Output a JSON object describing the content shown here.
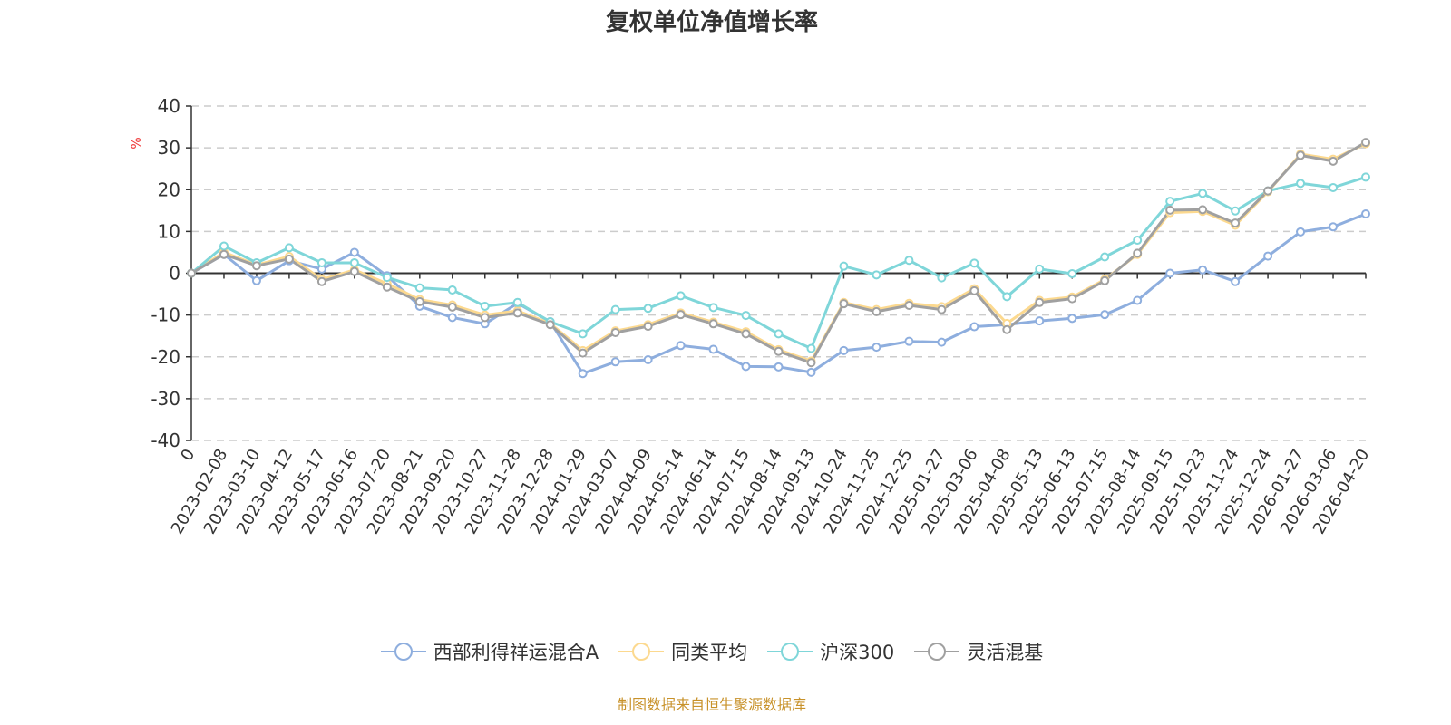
{
  "footer": "制图数据来自恒生聚源数据库",
  "chart_data": {
    "type": "line",
    "title": "复权单位净值增长率",
    "xlabel": "",
    "ylabel": "%",
    "ylim": [
      -40,
      40
    ],
    "yticks": [
      "40",
      "30",
      "20",
      "10",
      "0",
      "-10",
      "-20",
      "-30",
      "-40"
    ],
    "grid": true,
    "legend_position": "bottom",
    "categories": [
      "0",
      "2023-02-08",
      "2023-03-10",
      "2023-04-12",
      "2023-05-17",
      "2023-06-16",
      "2023-07-20",
      "2023-08-21",
      "2023-09-20",
      "2023-10-27",
      "2023-11-28",
      "2023-12-28",
      "2024-01-29",
      "2024-03-07",
      "2024-04-09",
      "2024-05-14",
      "2024-06-14",
      "2024-07-15",
      "2024-08-14",
      "2024-09-13",
      "2024-10-24",
      "2024-11-25",
      "2024-12-25",
      "2025-01-27",
      "2025-03-06",
      "2025-04-08",
      "2025-05-13",
      "2025-06-13",
      "2025-07-15",
      "2025-08-14",
      "2025-09-15",
      "2025-10-23",
      "2025-11-24",
      "2025-12-24",
      "2026-01-27",
      "2026-03-06",
      "2026-04-20"
    ],
    "series": [
      {
        "name": "西部利得祥运混合A",
        "color": "#8eaede",
        "values": [
          0,
          4.5,
          -1.8,
          3,
          1,
          5,
          -0.6,
          -7.9,
          -10.6,
          -12.1,
          -7.2,
          -11.6,
          -24,
          -21.2,
          -20.7,
          -17.3,
          -18.2,
          -22.3,
          -22.4,
          -23.7,
          -18.5,
          -17.7,
          -16.3,
          -16.5,
          -12.8,
          -12.3,
          -11.4,
          -10.8,
          -9.9,
          -6.5,
          0,
          0.8,
          -2,
          4.1,
          9.9,
          11.1,
          14.2
        ]
      },
      {
        "name": "同类平均",
        "color": "#fcd98f",
        "values": [
          0,
          5,
          2,
          4,
          -1.5,
          0.8,
          -2.5,
          -6.3,
          -7.6,
          -10,
          -9,
          -12,
          -18.5,
          -13.8,
          -12.3,
          -9.5,
          -11.7,
          -14,
          -18.3,
          -21,
          -7,
          -8.7,
          -7.2,
          -8,
          -3.7,
          -12,
          -6.5,
          -5.7,
          -1.5,
          4.5,
          14.5,
          14.8,
          11.5,
          19.5,
          28.5,
          27.3,
          31
        ]
      },
      {
        "name": "沪深300",
        "color": "#7fd6d9",
        "values": [
          0,
          6.5,
          2.5,
          6.1,
          2.5,
          2.5,
          -1,
          -3.5,
          -4,
          -7.9,
          -7,
          -11.6,
          -14.5,
          -8.7,
          -8.4,
          -5.4,
          -8.2,
          -10.1,
          -14.5,
          -18,
          1.7,
          -0.4,
          3.1,
          -1.1,
          2.4,
          -5.6,
          1,
          -0.1,
          3.9,
          7.9,
          17.2,
          19.1,
          14.9,
          19.7,
          21.5,
          20.5,
          23
        ]
      },
      {
        "name": "灵活混基",
        "color": "#a0a0a0",
        "values": [
          0,
          4.5,
          1.8,
          3.4,
          -2,
          0.4,
          -3.3,
          -6.8,
          -8.1,
          -10.6,
          -9.5,
          -12.3,
          -19.1,
          -14.2,
          -12.7,
          -9.9,
          -12.1,
          -14.5,
          -18.7,
          -21.4,
          -7.3,
          -9.2,
          -7.7,
          -8.7,
          -4.2,
          -13.5,
          -7,
          -6.1,
          -1.8,
          4.8,
          15.1,
          15.2,
          12,
          19.7,
          28.2,
          26.8,
          31.3
        ]
      }
    ]
  }
}
